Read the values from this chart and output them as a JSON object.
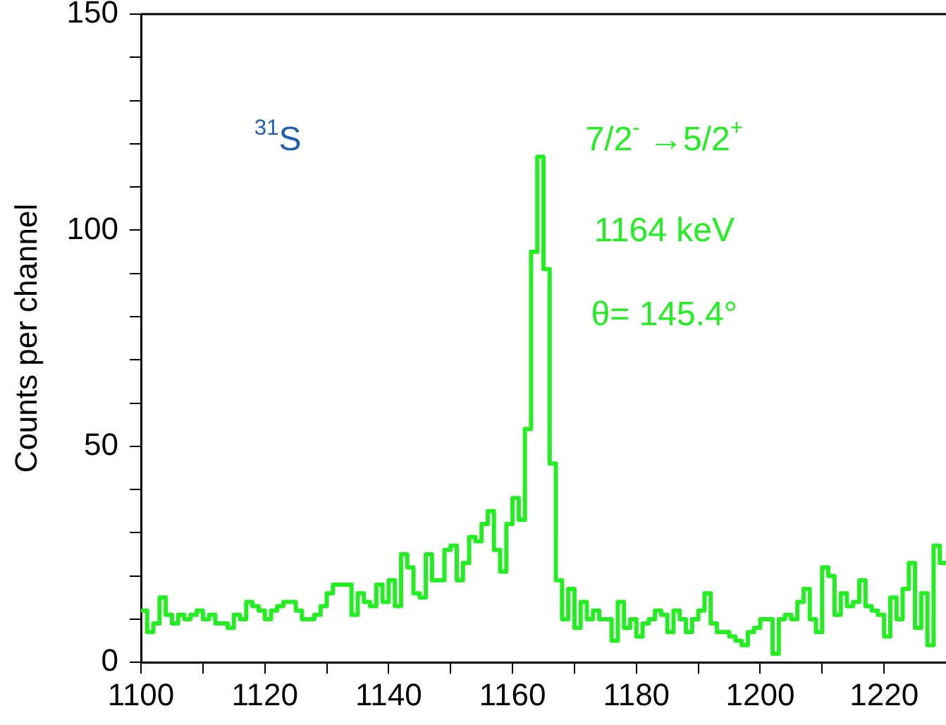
{
  "chart_data": {
    "type": "histogram",
    "ylabel": "Counts per channel",
    "bins": [
      1100,
      1101,
      1102,
      1103,
      1104,
      1105,
      1106,
      1107,
      1108,
      1109,
      1110,
      1111,
      1112,
      1113,
      1114,
      1115,
      1116,
      1117,
      1118,
      1119,
      1120,
      1121,
      1122,
      1123,
      1124,
      1125,
      1126,
      1127,
      1128,
      1129,
      1130,
      1131,
      1132,
      1133,
      1134,
      1135,
      1136,
      1137,
      1138,
      1139,
      1140,
      1141,
      1142,
      1143,
      1144,
      1145,
      1146,
      1147,
      1148,
      1149,
      1150,
      1151,
      1152,
      1153,
      1154,
      1155,
      1156,
      1157,
      1158,
      1159,
      1160,
      1161,
      1162,
      1163,
      1164,
      1165,
      1166,
      1167,
      1168,
      1169,
      1170,
      1171,
      1172,
      1173,
      1174,
      1175,
      1176,
      1177,
      1178,
      1179,
      1180,
      1181,
      1182,
      1183,
      1184,
      1185,
      1186,
      1187,
      1188,
      1189,
      1190,
      1191,
      1192,
      1193,
      1194,
      1195,
      1196,
      1197,
      1198,
      1199,
      1200,
      1201,
      1202,
      1203,
      1204,
      1205,
      1206,
      1207,
      1208,
      1209,
      1210,
      1211,
      1212,
      1213,
      1214,
      1215,
      1216,
      1217,
      1218,
      1219,
      1220,
      1221,
      1222,
      1223,
      1224,
      1225,
      1226,
      1227,
      1228,
      1229,
      1230
    ],
    "values": [
      12,
      7,
      9,
      15,
      11,
      9,
      11,
      10,
      11,
      12,
      10,
      11,
      9,
      9,
      8,
      11,
      10,
      14,
      13,
      12,
      10,
      12,
      13,
      14,
      14,
      12,
      10,
      10,
      11,
      13,
      16,
      18,
      18,
      18,
      11,
      16,
      14,
      13,
      18,
      14,
      19,
      13,
      25,
      22,
      16,
      15,
      25,
      19,
      19,
      26,
      27,
      19,
      23,
      29,
      28,
      32,
      35,
      26,
      21,
      32,
      38,
      33,
      54,
      95,
      117,
      91,
      46,
      19,
      10,
      17,
      8,
      14,
      10,
      12,
      10,
      10,
      5,
      14,
      8,
      10,
      6,
      9,
      10,
      12,
      11,
      7,
      12,
      10,
      7,
      10,
      12,
      16,
      9,
      7,
      7,
      6,
      5,
      4,
      7,
      8,
      10,
      10,
      2,
      10,
      11,
      10,
      14,
      17,
      10,
      7,
      22,
      20,
      11,
      16,
      13,
      14,
      19,
      13,
      12,
      11,
      6,
      15,
      10,
      17,
      23,
      8,
      16,
      4,
      27,
      23
    ],
    "color": "#22ee22",
    "line_style": "solid",
    "grid": false,
    "legend": false,
    "xlim": [
      1100,
      1230
    ],
    "xticks": [
      1100,
      {
        "value": 1110,
        "label": null
      },
      1120,
      {
        "value": 1130,
        "label": null
      },
      1140,
      {
        "value": 1150,
        "label": null
      },
      1160,
      {
        "value": 1170,
        "label": null
      },
      1180,
      {
        "value": 1190,
        "label": null
      },
      1200,
      {
        "value": 1210,
        "label": null
      },
      1220
    ],
    "ylim": [
      0,
      150
    ],
    "yticks": [
      0,
      {
        "value": 10,
        "label": null
      },
      {
        "value": 20,
        "label": null
      },
      {
        "value": 30,
        "label": null
      },
      {
        "value": 40,
        "label": null
      },
      50,
      {
        "value": 60,
        "label": null
      },
      {
        "value": 70,
        "label": null
      },
      {
        "value": 80,
        "label": null
      },
      {
        "value": 90,
        "label": null
      },
      100,
      {
        "value": 110,
        "label": null
      },
      {
        "value": 120,
        "label": null
      },
      {
        "value": 130,
        "label": null
      },
      {
        "value": 140,
        "label": null
      },
      150
    ],
    "annotations": [
      "$^{31}$S",
      "7/2$^{-}$ →5/2$^{+}$",
      "1164 keV",
      "θ= 145.4°"
    ]
  }
}
